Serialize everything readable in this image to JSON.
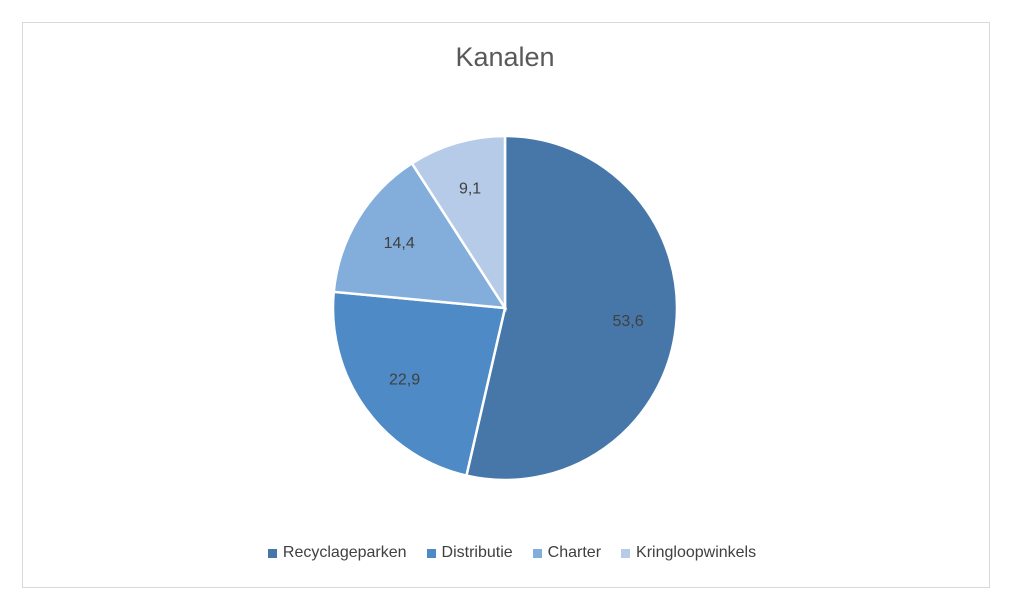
{
  "chart_data": {
    "type": "pie",
    "title": "Kanalen",
    "categories": [
      "Recyclageparken",
      "Distributie",
      "Charter",
      "Kringloopwinkels"
    ],
    "values": [
      53.6,
      22.9,
      14.4,
      9.1
    ],
    "data_labels": [
      "53,6",
      "22,9",
      "14,4",
      "9,1"
    ],
    "colors": [
      "#4677a8",
      "#4e8ac6",
      "#83aedc",
      "#b6cbe7"
    ],
    "legend_position": "bottom",
    "start": "top, clockwise"
  },
  "legend": [
    {
      "label": "Recyclageparken",
      "color": "#4677a8"
    },
    {
      "label": "Distributie",
      "color": "#4e8ac6"
    },
    {
      "label": "Charter",
      "color": "#83aedc"
    },
    {
      "label": "Kringloopwinkels",
      "color": "#b6cbe7"
    }
  ]
}
